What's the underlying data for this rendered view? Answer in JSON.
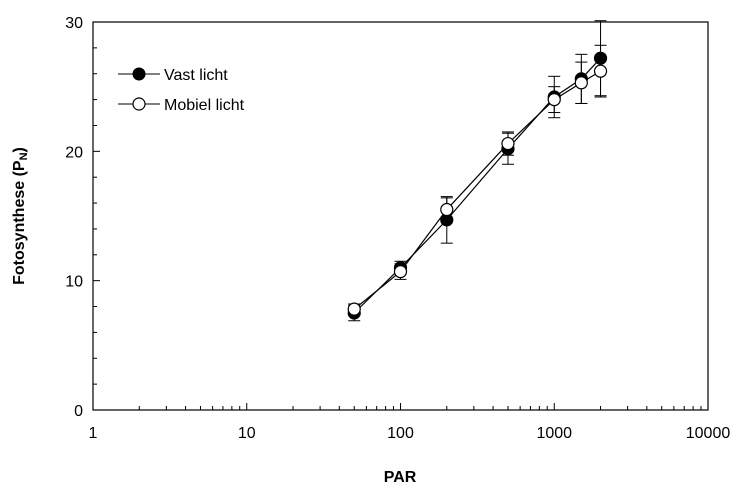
{
  "chart_data": {
    "type": "scatter",
    "xscale": "log",
    "xlabel": "PAR",
    "ylabel": "Fotosynthese (P",
    "ylabel_sub": "N",
    "ylabel_close": ")",
    "xlim": [
      1,
      10000
    ],
    "ylim": [
      0,
      30
    ],
    "x_ticks": [
      1,
      10,
      100,
      1000,
      10000
    ],
    "x_tick_labels": [
      "1",
      "10",
      "100",
      "1000",
      "10000"
    ],
    "y_ticks": [
      0,
      10,
      20,
      30
    ],
    "y_tick_labels": [
      "0",
      "10",
      "20",
      "30"
    ],
    "grid": false,
    "legend_position": "top-left",
    "series": [
      {
        "name": "Vast licht",
        "marker": "filled-circle",
        "color": "#000000",
        "x": [
          50,
          100,
          200,
          500,
          1000,
          1500,
          2000
        ],
        "y": [
          7.5,
          11.0,
          14.7,
          20.2,
          24.2,
          25.6,
          27.2
        ],
        "err": [
          0.6,
          0.5,
          1.8,
          1.2,
          1.6,
          1.9,
          2.9
        ]
      },
      {
        "name": "Mobiel licht",
        "marker": "open-circle",
        "color": "#000000",
        "x": [
          50,
          100,
          200,
          500,
          1000,
          1500,
          2000
        ],
        "y": [
          7.8,
          10.7,
          15.5,
          20.6,
          24.0,
          25.3,
          26.2
        ],
        "err": [
          0.4,
          0.6,
          0.9,
          0.9,
          1.0,
          1.6,
          2.0
        ]
      }
    ]
  }
}
